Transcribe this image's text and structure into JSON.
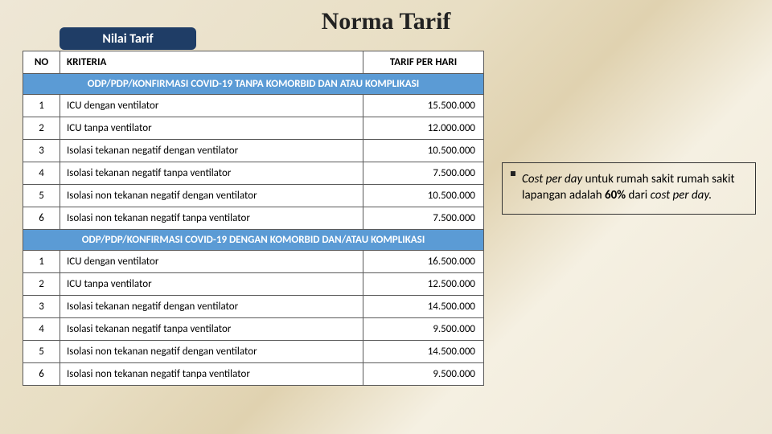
{
  "title": "Norma Tarif",
  "tab_label": "Nilai Tarif",
  "table": {
    "headers": {
      "no": "NO",
      "kriteria": "KRITERIA",
      "tarif": "TARIF PER HARI"
    },
    "sections": [
      {
        "heading": "ODP/PDP/KONFIRMASI COVID-19 TANPA KOMORBID DAN ATAU KOMPLIKASI",
        "rows": [
          {
            "no": "1",
            "kriteria": "ICU dengan ventilator",
            "tarif": "15.500.000"
          },
          {
            "no": "2",
            "kriteria": "ICU tanpa ventilator",
            "tarif": "12.000.000"
          },
          {
            "no": "3",
            "kriteria": "Isolasi tekanan negatif dengan ventilator",
            "tarif": "10.500.000"
          },
          {
            "no": "4",
            "kriteria": "Isolasi tekanan negatif tanpa ventilator",
            "tarif": "7.500.000"
          },
          {
            "no": "5",
            "kriteria": "Isolasi non tekanan negatif dengan ventilator",
            "tarif": "10.500.000"
          },
          {
            "no": "6",
            "kriteria": "Isolasi non tekanan negatif tanpa ventilator",
            "tarif": "7.500.000"
          }
        ]
      },
      {
        "heading": "ODP/PDP/KONFIRMASI COVID-19 DENGAN KOMORBID DAN/ATAU KOMPLIKASI",
        "rows": [
          {
            "no": "1",
            "kriteria": "ICU dengan ventilator",
            "tarif": "16.500.000"
          },
          {
            "no": "2",
            "kriteria": "ICU tanpa ventilator",
            "tarif": "12.500.000"
          },
          {
            "no": "3",
            "kriteria": "Isolasi tekanan negatif dengan ventilator",
            "tarif": "14.500.000"
          },
          {
            "no": "4",
            "kriteria": "Isolasi tekanan negatif tanpa ventilator",
            "tarif": "9.500.000"
          },
          {
            "no": "5",
            "kriteria": "Isolasi non tekanan negatif dengan ventilator",
            "tarif": "14.500.000"
          },
          {
            "no": "6",
            "kriteria": "Isolasi non tekanan negatif tanpa ventilator",
            "tarif": "9.500.000"
          }
        ]
      }
    ]
  },
  "note": {
    "p1_italic1": "Cost per day",
    "p1_plain": " untuk rumah sakit rumah sakit lapangan adalah ",
    "p1_bold": "60% ",
    "p1_plain2": "dari ",
    "p1_italic2": "cost per day."
  },
  "style": {
    "accent_blue": "#5b9bd5",
    "dark_blue": "#1f3d66",
    "border_color": "#5b5b5b",
    "bg_gradient_from": "#eee7d6",
    "bg_gradient_to": "#e0d2b0"
  }
}
